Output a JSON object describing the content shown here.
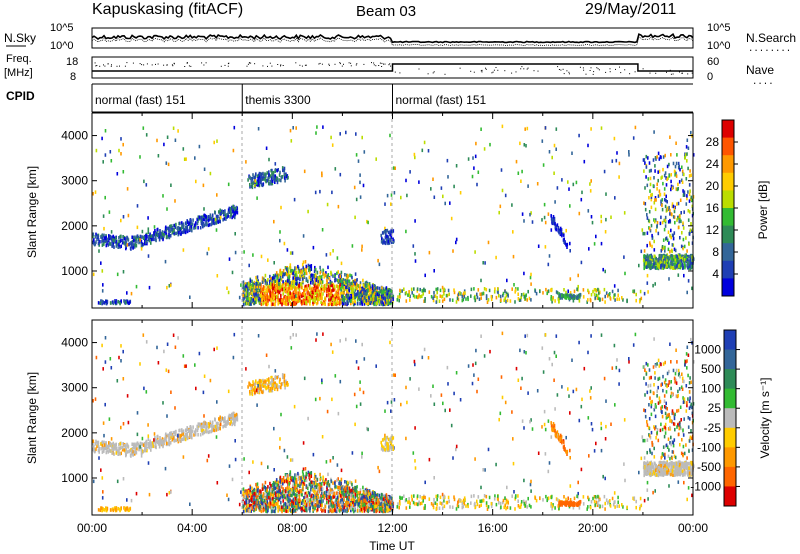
{
  "header": {
    "station": "Kapuskasing (fitACF)",
    "beam": "Beam 03",
    "date": "29/May/2011"
  },
  "noise_panel": {
    "left_label": "N.Sky",
    "left_ticks": [
      "10^5",
      "10^0"
    ],
    "right_ticks": [
      "10^5",
      "10^0"
    ],
    "right_label": "N.Search",
    "right_label_line": "........"
  },
  "freq_panel": {
    "left_label_1": "Freq.",
    "left_label_2": "[MHz]",
    "left_ticks": [
      "18",
      "8"
    ],
    "right_ticks": [
      "60",
      "0"
    ],
    "right_label": "Nave",
    "right_label_line": "...."
  },
  "cpid": {
    "label": "CPID",
    "segments": [
      {
        "name": "normal (fast) 151",
        "start_h": 0,
        "end_h": 6
      },
      {
        "name": "themis 3300",
        "start_h": 6,
        "end_h": 12
      },
      {
        "name": "normal (fast) 151",
        "start_h": 12,
        "end_h": 24
      }
    ]
  },
  "chart_data": [
    {
      "type": "heatmap",
      "title": "",
      "xlabel": "",
      "ylabel": "Slant Range [km]",
      "xlim": [
        0,
        24
      ],
      "ylim": [
        180,
        4500
      ],
      "yticks": [
        1000,
        2000,
        3000,
        4000
      ],
      "colorbar": {
        "label": "Power [dB]",
        "ticks": [
          "28",
          "24",
          "20",
          "16",
          "12",
          "8",
          "4"
        ],
        "colors": [
          "#dd0000",
          "#ff5500",
          "#ff9900",
          "#ffcc00",
          "#bbdd00",
          "#33bb33",
          "#2e8b57",
          "#336699",
          "#1f3fb4",
          "#0000dd"
        ]
      }
    },
    {
      "type": "heatmap",
      "title": "",
      "xlabel": "Time UT",
      "ylabel": "Slant Range [km]",
      "xlim": [
        0,
        24
      ],
      "ylim": [
        180,
        4500
      ],
      "xtick_labels": [
        "00:00",
        "04:00",
        "08:00",
        "12:00",
        "16:00",
        "20:00",
        "00:00"
      ],
      "yticks": [
        1000,
        2000,
        3000,
        4000
      ],
      "colorbar": {
        "label": "Velocity [m s⁻¹]",
        "ticks": [
          "1000",
          "500",
          "100",
          "25",
          "-25",
          "-100",
          "-500",
          "-1000"
        ],
        "colors": [
          "#1f3fb4",
          "#336699",
          "#2e8b57",
          "#33bb33",
          "#bbbbbb",
          "#ffcc00",
          "#ff9900",
          "#ff6600",
          "#dd0000"
        ]
      }
    }
  ]
}
